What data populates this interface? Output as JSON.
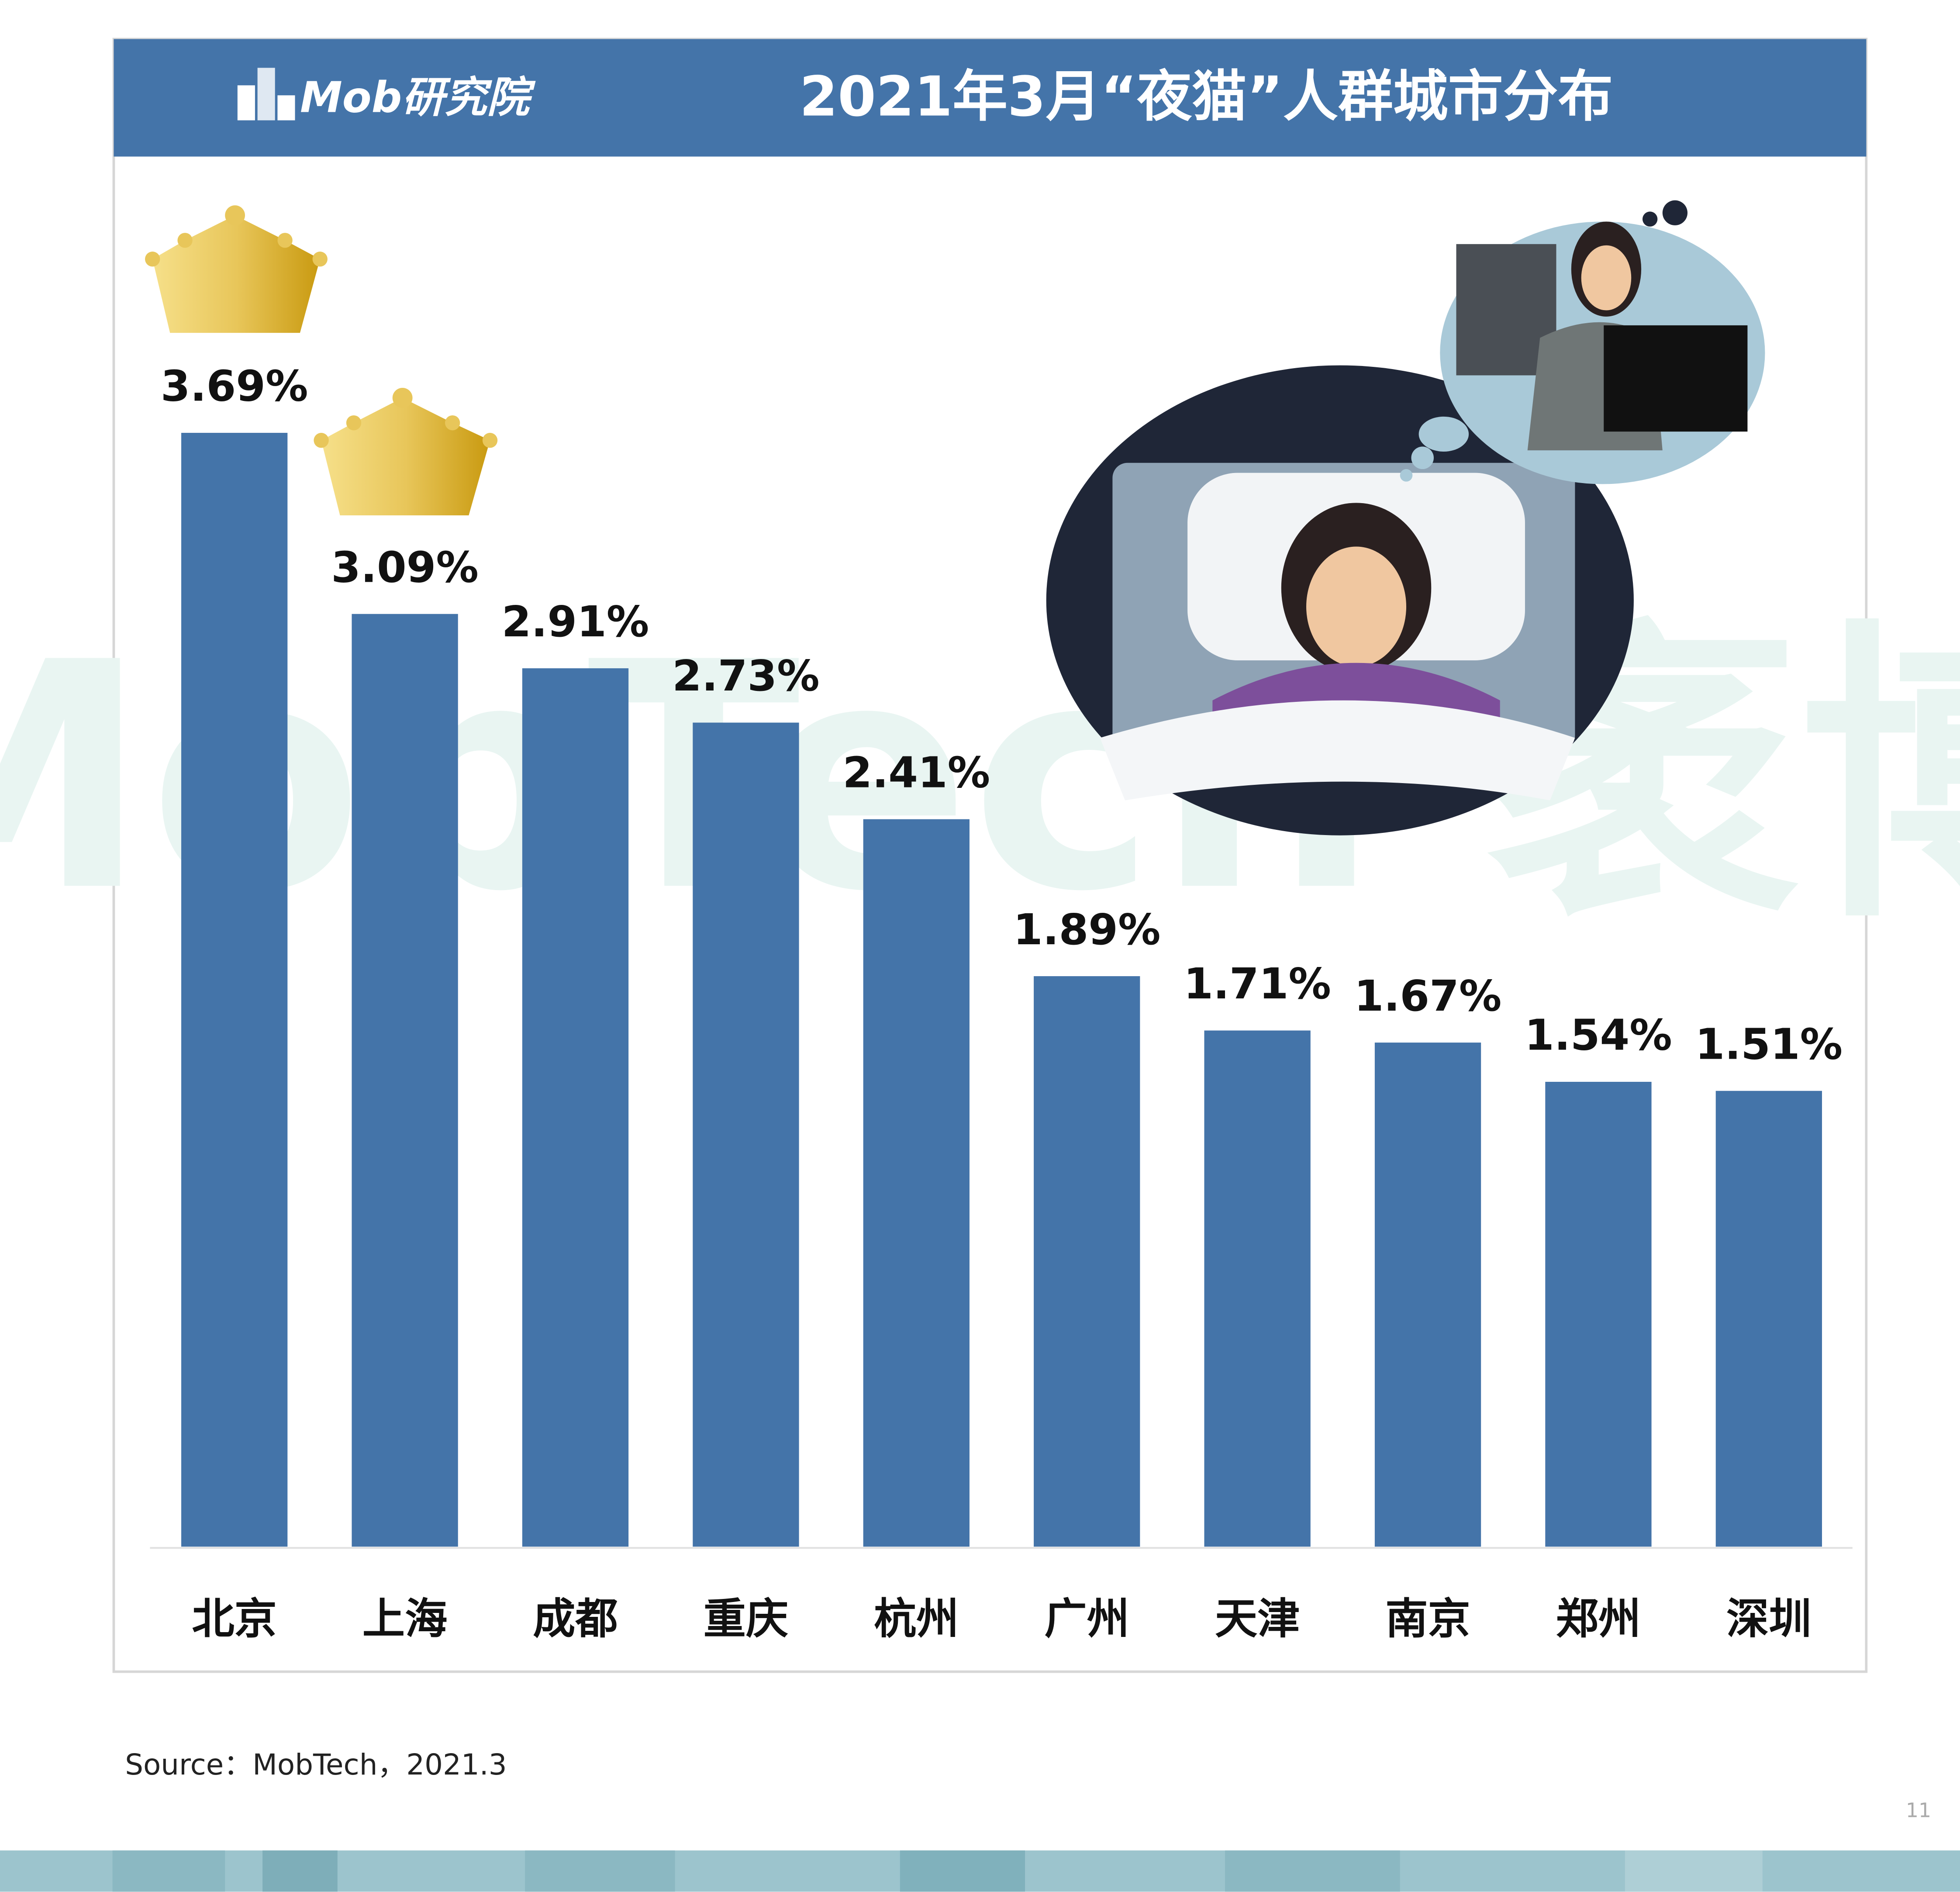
{
  "logo": "Mob研究院",
  "watermark": "MobTech 袤博",
  "source": "Source：MobTech，2021.3",
  "page_number": "11",
  "chart_data": {
    "type": "bar",
    "title": "2021年3月“夜猫”人群城市分布",
    "categories": [
      "北京",
      "上海",
      "成都",
      "重庆",
      "杭州",
      "广州",
      "天津",
      "南京",
      "郑州",
      "深圳"
    ],
    "values": [
      3.69,
      3.09,
      2.91,
      2.73,
      2.41,
      1.89,
      1.71,
      1.67,
      1.54,
      1.51
    ],
    "value_labels": [
      "3.69%",
      "3.09%",
      "2.91%",
      "2.73%",
      "2.41%",
      "1.89%",
      "1.71%",
      "1.67%",
      "1.54%",
      "1.51%"
    ],
    "color": "#4474a9"
  }
}
